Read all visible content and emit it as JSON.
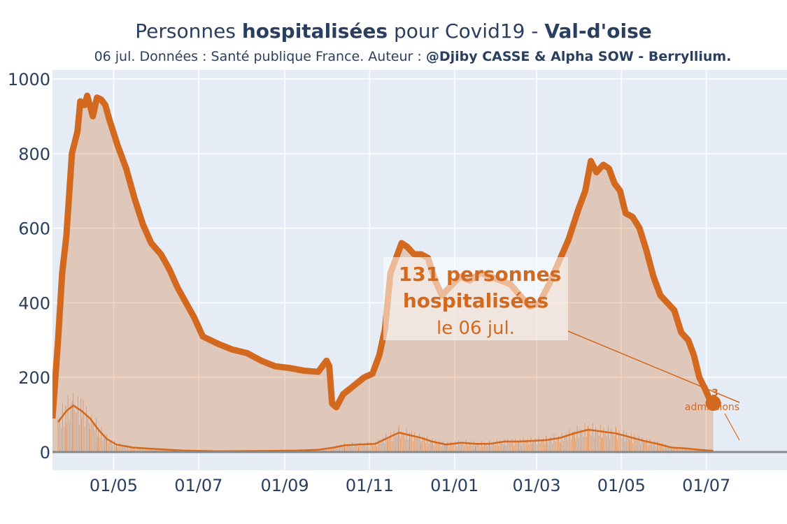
{
  "title": {
    "prefix": "Personnes ",
    "bold1": "hospitalisées",
    "middle": " pour Covid19 - ",
    "bold2": "Val-d'oise"
  },
  "subtitle": {
    "text": "06 jul. Données : Santé publique France. Auteur : ",
    "bold": "@Djiby CASSE & Alpha SOW - Berryllium."
  },
  "annotation": {
    "line1": "131 personnes",
    "line2": "hospitalisées",
    "line3": "le 06 jul.",
    "admissions_value": "3",
    "admissions_label": "admissions"
  },
  "colors": {
    "main": "#d2691e",
    "fill": "rgba(210,105,30,0.28)",
    "plot_bg": "#e5ecf6"
  },
  "chart_data": {
    "type": "area",
    "x_axis_type": "date",
    "x_range": [
      "2020-03-18",
      "2021-08-28"
    ],
    "y_range": [
      0,
      1000
    ],
    "grid": true,
    "x_ticks": [
      {
        "label": "01/05",
        "date": "2020-05-01"
      },
      {
        "label": "01/07",
        "date": "2020-07-01"
      },
      {
        "label": "01/09",
        "date": "2020-09-01"
      },
      {
        "label": "01/11",
        "date": "2020-11-01"
      },
      {
        "label": "01/01",
        "date": "2021-01-01"
      },
      {
        "label": "01/03",
        "date": "2021-03-01"
      },
      {
        "label": "01/05",
        "date": "2021-05-01"
      },
      {
        "label": "01/07",
        "date": "2021-07-01"
      }
    ],
    "y_ticks": [
      0,
      200,
      400,
      600,
      800,
      1000
    ],
    "series": [
      {
        "name": "hospitalisations",
        "points": [
          [
            "2020-03-18",
            90
          ],
          [
            "2020-03-22",
            300
          ],
          [
            "2020-03-25",
            480
          ],
          [
            "2020-03-28",
            580
          ],
          [
            "2020-04-01",
            800
          ],
          [
            "2020-04-05",
            860
          ],
          [
            "2020-04-07",
            940
          ],
          [
            "2020-04-10",
            930
          ],
          [
            "2020-04-12",
            955
          ],
          [
            "2020-04-16",
            900
          ],
          [
            "2020-04-19",
            950
          ],
          [
            "2020-04-22",
            945
          ],
          [
            "2020-04-25",
            930
          ],
          [
            "2020-04-28",
            890
          ],
          [
            "2020-05-04",
            820
          ],
          [
            "2020-05-10",
            760
          ],
          [
            "2020-05-16",
            680
          ],
          [
            "2020-05-22",
            610
          ],
          [
            "2020-05-28",
            560
          ],
          [
            "2020-06-04",
            530
          ],
          [
            "2020-06-10",
            490
          ],
          [
            "2020-06-16",
            440
          ],
          [
            "2020-06-22",
            400
          ],
          [
            "2020-06-28",
            360
          ],
          [
            "2020-07-04",
            310
          ],
          [
            "2020-07-15",
            290
          ],
          [
            "2020-07-25",
            275
          ],
          [
            "2020-08-05",
            265
          ],
          [
            "2020-08-15",
            245
          ],
          [
            "2020-08-25",
            230
          ],
          [
            "2020-09-05",
            225
          ],
          [
            "2020-09-15",
            218
          ],
          [
            "2020-09-25",
            215
          ],
          [
            "2020-10-01",
            245
          ],
          [
            "2020-10-03",
            230
          ],
          [
            "2020-10-05",
            130
          ],
          [
            "2020-10-08",
            120
          ],
          [
            "2020-10-13",
            155
          ],
          [
            "2020-10-18",
            170
          ],
          [
            "2020-10-23",
            185
          ],
          [
            "2020-10-28",
            200
          ],
          [
            "2020-11-03",
            210
          ],
          [
            "2020-11-08",
            260
          ],
          [
            "2020-11-12",
            330
          ],
          [
            "2020-11-16",
            480
          ],
          [
            "2020-11-20",
            520
          ],
          [
            "2020-11-24",
            560
          ],
          [
            "2020-11-28",
            550
          ],
          [
            "2020-12-03",
            530
          ],
          [
            "2020-12-08",
            530
          ],
          [
            "2020-12-13",
            520
          ],
          [
            "2020-12-18",
            460
          ],
          [
            "2020-12-23",
            420
          ],
          [
            "2020-12-28",
            440
          ],
          [
            "2021-01-05",
            470
          ],
          [
            "2021-01-12",
            460
          ],
          [
            "2021-01-20",
            480
          ],
          [
            "2021-01-27",
            470
          ],
          [
            "2021-02-03",
            460
          ],
          [
            "2021-02-10",
            450
          ],
          [
            "2021-02-17",
            420
          ],
          [
            "2021-02-24",
            390
          ],
          [
            "2021-03-03",
            400
          ],
          [
            "2021-03-10",
            450
          ],
          [
            "2021-03-17",
            510
          ],
          [
            "2021-03-24",
            570
          ],
          [
            "2021-03-31",
            650
          ],
          [
            "2021-04-05",
            700
          ],
          [
            "2021-04-09",
            780
          ],
          [
            "2021-04-13",
            750
          ],
          [
            "2021-04-18",
            770
          ],
          [
            "2021-04-22",
            760
          ],
          [
            "2021-04-26",
            720
          ],
          [
            "2021-04-30",
            700
          ],
          [
            "2021-05-04",
            640
          ],
          [
            "2021-05-09",
            630
          ],
          [
            "2021-05-14",
            600
          ],
          [
            "2021-05-19",
            540
          ],
          [
            "2021-05-24",
            470
          ],
          [
            "2021-05-29",
            420
          ],
          [
            "2021-06-03",
            400
          ],
          [
            "2021-06-08",
            380
          ],
          [
            "2021-06-13",
            320
          ],
          [
            "2021-06-18",
            300
          ],
          [
            "2021-06-22",
            260
          ],
          [
            "2021-06-26",
            200
          ],
          [
            "2021-06-30",
            170
          ],
          [
            "2021-07-03",
            145
          ],
          [
            "2021-07-06",
            131
          ]
        ]
      },
      {
        "name": "admissions",
        "points": [
          [
            "2020-03-22",
            80
          ],
          [
            "2020-03-28",
            110
          ],
          [
            "2020-04-02",
            125
          ],
          [
            "2020-04-08",
            110
          ],
          [
            "2020-04-14",
            90
          ],
          [
            "2020-04-20",
            60
          ],
          [
            "2020-04-26",
            35
          ],
          [
            "2020-05-03",
            20
          ],
          [
            "2020-05-15",
            12
          ],
          [
            "2020-06-01",
            8
          ],
          [
            "2020-06-20",
            4
          ],
          [
            "2020-07-15",
            2
          ],
          [
            "2020-08-15",
            3
          ],
          [
            "2020-09-10",
            4
          ],
          [
            "2020-09-25",
            6
          ],
          [
            "2020-10-06",
            12
          ],
          [
            "2020-10-14",
            18
          ],
          [
            "2020-10-24",
            20
          ],
          [
            "2020-11-05",
            22
          ],
          [
            "2020-11-14",
            38
          ],
          [
            "2020-11-22",
            52
          ],
          [
            "2020-11-30",
            45
          ],
          [
            "2020-12-08",
            38
          ],
          [
            "2020-12-16",
            28
          ],
          [
            "2020-12-26",
            20
          ],
          [
            "2021-01-06",
            25
          ],
          [
            "2021-01-16",
            22
          ],
          [
            "2021-01-26",
            22
          ],
          [
            "2021-02-06",
            28
          ],
          [
            "2021-02-16",
            28
          ],
          [
            "2021-02-26",
            30
          ],
          [
            "2021-03-08",
            32
          ],
          [
            "2021-03-18",
            38
          ],
          [
            "2021-03-28",
            50
          ],
          [
            "2021-04-07",
            60
          ],
          [
            "2021-04-17",
            55
          ],
          [
            "2021-04-27",
            50
          ],
          [
            "2021-05-07",
            40
          ],
          [
            "2021-05-17",
            30
          ],
          [
            "2021-05-27",
            22
          ],
          [
            "2021-06-06",
            12
          ],
          [
            "2021-06-16",
            10
          ],
          [
            "2021-06-26",
            6
          ],
          [
            "2021-07-06",
            3
          ]
        ]
      }
    ]
  }
}
